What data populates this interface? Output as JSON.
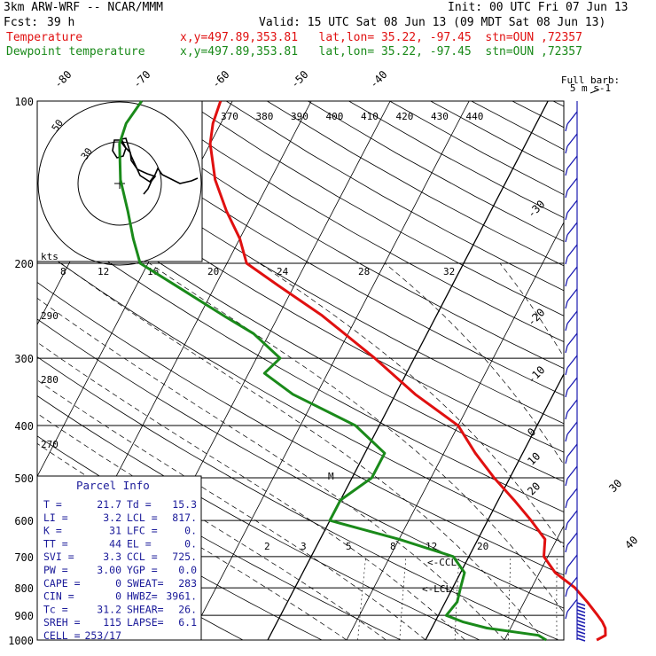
{
  "header": {
    "model": "3km ARW-WRF -- NCAR/MMM",
    "init": "Init: 00 UTC Fri 07 Jun 13",
    "fcst_label": "Fcst:",
    "fcst_value": "39 h",
    "valid": "Valid: 15 UTC Sat 08 Jun 13 (09 MDT Sat 08 Jun 13)",
    "temp_label": "Temperature",
    "dew_label": "Dewpoint temperature",
    "loc_line": "x,y=497.89,353.81   lat,lon= 35.22, -97.45  stn=OUN ,72357",
    "barb_title": "Full barb:",
    "barb_unit": "5 m s-1"
  },
  "colors": {
    "temperature": "#e01010",
    "dewpoint": "#1a8a1a",
    "parcel_text": "#1b1b9a",
    "barbs": "#1b1bb0"
  },
  "parcel": {
    "title": "Parcel Info",
    "rows": [
      [
        "T  =",
        "21.7",
        "Td =",
        "15.3"
      ],
      [
        "LI =",
        "3.2",
        "LCL =",
        "817."
      ],
      [
        "K  =",
        "31",
        "LFC =",
        "0."
      ],
      [
        "TT =",
        "44",
        "EL  =",
        "0."
      ],
      [
        "SVI =",
        "3.3",
        "CCL =",
        "725."
      ],
      [
        "PW =",
        "3.00",
        "YGP =",
        "0.0"
      ],
      [
        "CAPE =",
        "0",
        "SWEAT=",
        "283"
      ],
      [
        "CIN =",
        "0",
        "HWBZ=",
        "3961."
      ],
      [
        "Tc =",
        "31.2",
        "SHEAR=",
        "26."
      ],
      [
        "SREH =",
        "115",
        "LAPSE=",
        "6.1"
      ],
      [
        "CELL =",
        "253/17",
        "",
        ""
      ]
    ]
  },
  "chart_data": {
    "type": "line",
    "chart_kind": "skew-T log-p",
    "y_axis": {
      "pressure_ticks_hpa": [
        100,
        200,
        300,
        400,
        500,
        600,
        700,
        800,
        900,
        1000
      ],
      "ylim_hpa": [
        1000,
        100
      ],
      "scale": "log"
    },
    "isotherm_labels_c": [
      "-80",
      "-70",
      "-60",
      "-50",
      "-40",
      "-30",
      "-20",
      "-10",
      "0",
      "10",
      "20",
      "30",
      "40"
    ],
    "theta_e_labels_k": [
      "370",
      "380",
      "390",
      "400",
      "410",
      "420",
      "430",
      "440"
    ],
    "dry_adiabat_labels_k": [
      "290",
      "280",
      "270"
    ],
    "mixing_ratio_labels": [
      "2",
      "3",
      "5",
      "8",
      "12",
      "20"
    ],
    "hodograph_speed_labels": [
      "8",
      "12",
      "16",
      "20",
      "24",
      "28",
      "32"
    ],
    "hodograph_ring_labels": [
      "50",
      "30"
    ],
    "hodograph_units": "kts",
    "annotations": [
      "<-CCL",
      "<-LCL",
      "M"
    ],
    "series": [
      {
        "name": "Temperature",
        "points": [
          [
            1000,
            21.7
          ],
          [
            980,
            22.5
          ],
          [
            950,
            22.0
          ],
          [
            925,
            21.2
          ],
          [
            900,
            20.2
          ],
          [
            850,
            18.0
          ],
          [
            800,
            15.5
          ],
          [
            750,
            12.0
          ],
          [
            700,
            9.5
          ],
          [
            650,
            8.5
          ],
          [
            600,
            5.5
          ],
          [
            550,
            2.0
          ],
          [
            500,
            -2.0
          ],
          [
            450,
            -6.0
          ],
          [
            400,
            -10.0
          ],
          [
            350,
            -17.5
          ],
          [
            300,
            -25.0
          ],
          [
            250,
            -34.5
          ],
          [
            220,
            -42.0
          ],
          [
            200,
            -47.5
          ],
          [
            180,
            -50.0
          ],
          [
            160,
            -53.5
          ],
          [
            140,
            -57.0
          ],
          [
            120,
            -60.0
          ],
          [
            110,
            -61.0
          ],
          [
            100,
            -61.5
          ]
        ]
      },
      {
        "name": "Dewpoint temperature",
        "points": [
          [
            1000,
            15.3
          ],
          [
            980,
            14.0
          ],
          [
            950,
            7.0
          ],
          [
            925,
            3.5
          ],
          [
            900,
            1.0
          ],
          [
            850,
            1.5
          ],
          [
            800,
            1.0
          ],
          [
            750,
            0.5
          ],
          [
            700,
            -2.0
          ],
          [
            650,
            -10.0
          ],
          [
            600,
            -20.0
          ],
          [
            550,
            -20.0
          ],
          [
            500,
            -17.5
          ],
          [
            450,
            -17.5
          ],
          [
            400,
            -23.0
          ],
          [
            350,
            -33.0
          ],
          [
            320,
            -38.0
          ],
          [
            300,
            -37.0
          ],
          [
            270,
            -42.0
          ],
          [
            250,
            -47.0
          ],
          [
            220,
            -55.0
          ],
          [
            200,
            -61.0
          ],
          [
            180,
            -63.5
          ],
          [
            160,
            -66.0
          ],
          [
            140,
            -69.0
          ],
          [
            120,
            -71.5
          ],
          [
            110,
            -72.0
          ],
          [
            100,
            -71.5
          ]
        ]
      }
    ]
  }
}
